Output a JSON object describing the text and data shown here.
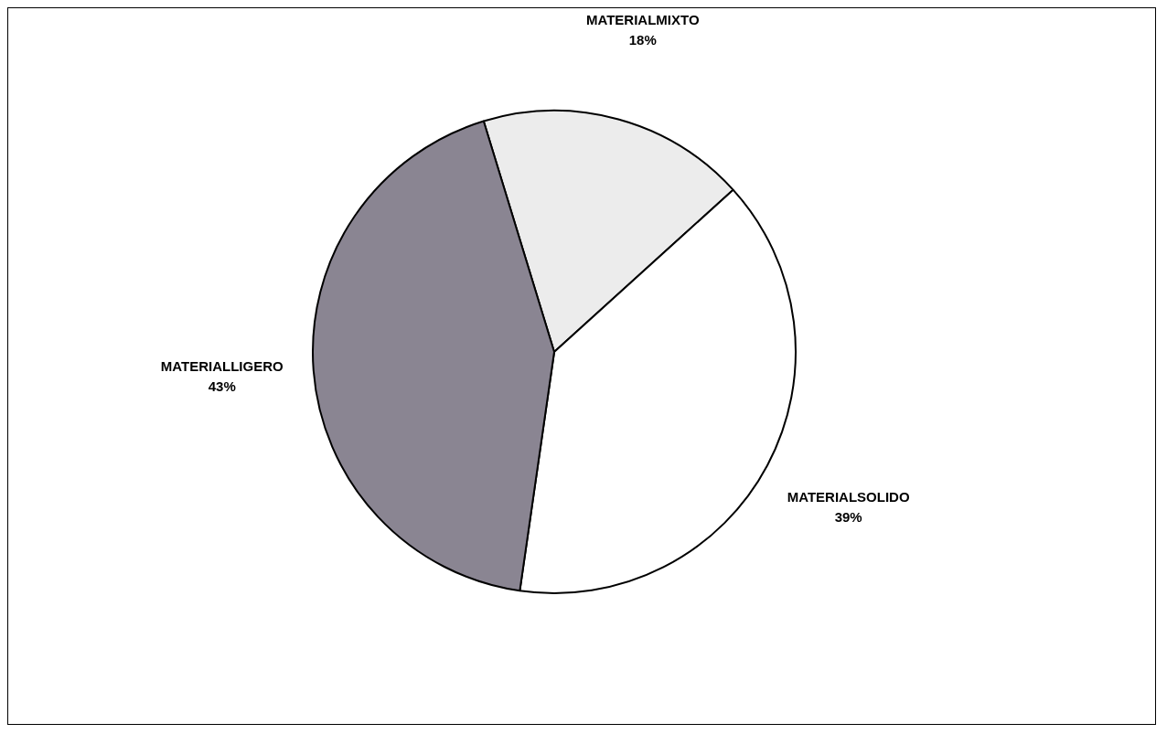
{
  "chart_data": {
    "type": "pie",
    "categories": [
      "MATERIALMIXTO",
      "MATERIALSOLIDO",
      "MATERIALLIGERO"
    ],
    "values": [
      18,
      39,
      43
    ],
    "colors": [
      "#ececec",
      "#ffffff",
      "#8a8592"
    ],
    "value_labels": [
      "18%",
      "39%",
      "43%"
    ],
    "legend": false
  }
}
